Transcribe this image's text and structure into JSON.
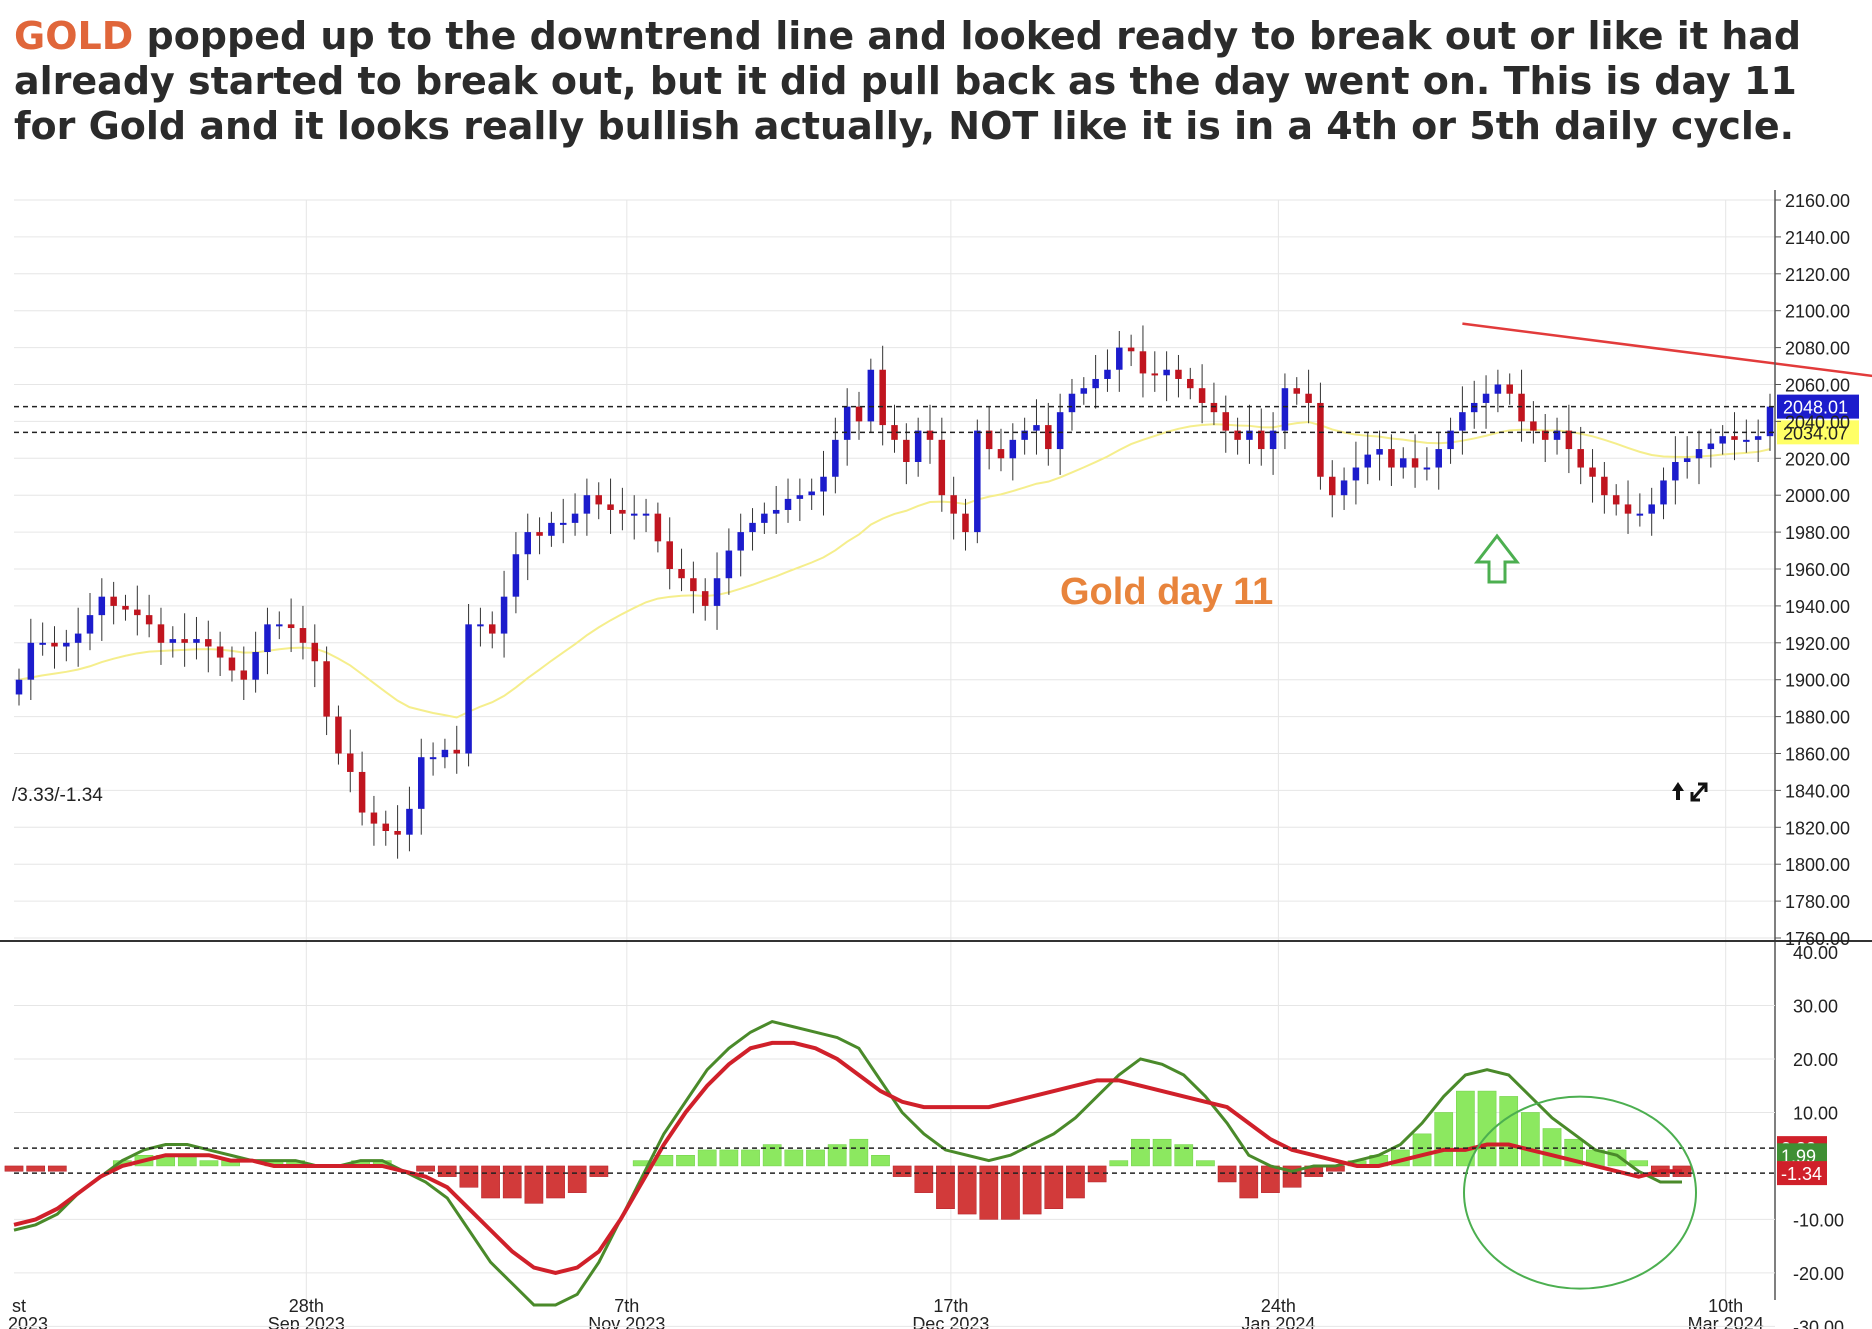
{
  "headline": {
    "ticker": "GOLD",
    "text": " popped up to the downtrend line and looked ready to break out or like it had already started to break out, but it did pull back as the day went on. This is day 11 for Gold and it looks really bullish actually, NOT like it is in a 4th or 5th daily cycle."
  },
  "colors": {
    "up_candle": "#1c1ccc",
    "down_candle": "#c0151f",
    "ma_line": "#f5ee8c",
    "trend_line": "#e23b3b",
    "annotation": "#e8843c",
    "arrow": "#4caf50",
    "macd_fast": "#4a8a2a",
    "macd_signal": "#d0202a",
    "hist_pos": "#8ce860",
    "hist_neg": "#d23a3a"
  },
  "chart_data": [
    {
      "type": "candlestick",
      "x_ticks": [
        "28th\nSep 2023",
        "7th\nNov 2023",
        "17th\nDec 2023",
        "24th\nJan 2024",
        "10th\nMar 2024"
      ],
      "x_edge_label": "st\n2023",
      "y_ticks": [
        "1760.00",
        "1780.00",
        "1800.00",
        "1820.00",
        "1840.00",
        "1860.00",
        "1880.00",
        "1900.00",
        "1920.00",
        "1940.00",
        "1960.00",
        "1980.00",
        "2000.00",
        "2020.00",
        "2040.00",
        "2060.00",
        "2080.00",
        "2100.00",
        "2120.00",
        "2140.00",
        "2160.00"
      ],
      "ylim": [
        1760,
        2160
      ],
      "price_labels": [
        {
          "label": "2048.01",
          "value": 2048.01,
          "color": "#1c1ccc"
        },
        {
          "label": "2034.07",
          "value": 2034.07,
          "color": "#ffff66"
        }
      ],
      "annotation": "Gold day 11",
      "trend_line": {
        "from_index": 122,
        "to_index": 188,
        "values": [
          2093,
          2039
        ]
      },
      "closes": [
        1900,
        1920,
        1920,
        1918,
        1920,
        1925,
        1935,
        1945,
        1940,
        1938,
        1935,
        1930,
        1920,
        1922,
        1920,
        1922,
        1918,
        1912,
        1905,
        1900,
        1915,
        1930,
        1930,
        1928,
        1920,
        1910,
        1880,
        1860,
        1850,
        1828,
        1822,
        1818,
        1816,
        1830,
        1858,
        1858,
        1862,
        1860,
        1930,
        1930,
        1925,
        1945,
        1968,
        1980,
        1978,
        1985,
        1985,
        1990,
        2000,
        1995,
        1992,
        1990,
        1990,
        1990,
        1975,
        1960,
        1955,
        1948,
        1940,
        1955,
        1970,
        1980,
        1985,
        1990,
        1992,
        1998,
        2000,
        2002,
        2010,
        2030,
        2048,
        2040,
        2068,
        2038,
        2030,
        2018,
        2035,
        2030,
        2000,
        1990,
        1980,
        2035,
        2025,
        2020,
        2030,
        2035,
        2038,
        2025,
        2045,
        2055,
        2058,
        2063,
        2068,
        2080,
        2078,
        2066,
        2065,
        2068,
        2063,
        2058,
        2050,
        2045,
        2035,
        2030,
        2035,
        2025,
        2035,
        2058,
        2055,
        2050,
        2010,
        2000,
        2008,
        2015,
        2022,
        2025,
        2015,
        2020,
        2015,
        2015,
        2025,
        2035,
        2045,
        2050,
        2055,
        2060,
        2055,
        2040,
        2035,
        2030,
        2035,
        2025,
        2015,
        2010,
        2000,
        1995,
        1990,
        1990,
        1995,
        2008,
        2018,
        2020,
        2025,
        2028,
        2032,
        2030,
        2030,
        2032,
        2048
      ]
    },
    {
      "type": "macd",
      "label": "/3.33/-1.34",
      "y_ticks": [
        "30.00",
        "20.00",
        "10.00",
        "-10.00",
        "-20.00",
        "-30.00"
      ],
      "top_tick": "40.00",
      "ylim": [
        -26,
        40
      ],
      "value_labels": [
        {
          "label": "3.33",
          "value": 3.33,
          "color": "#d0202a"
        },
        {
          "label": "1.99",
          "value": 1.99,
          "color": "#3f8f33"
        },
        {
          "label": "-1.34",
          "value": -1.34,
          "color": "#d0202a"
        }
      ],
      "macd": [
        -12,
        -11,
        -9,
        -5,
        -2,
        1,
        3,
        4,
        4,
        3,
        2,
        1,
        1,
        1,
        0,
        0,
        1,
        1,
        -1,
        -3,
        -6,
        -12,
        -18,
        -22,
        -26,
        -26,
        -24,
        -18,
        -10,
        -2,
        6,
        12,
        18,
        22,
        25,
        27,
        26,
        25,
        24,
        22,
        16,
        10,
        6,
        3,
        2,
        1,
        2,
        4,
        6,
        9,
        13,
        17,
        20,
        19,
        17,
        13,
        8,
        2,
        0,
        -1,
        0,
        0,
        1,
        2,
        4,
        8,
        13,
        17,
        18,
        17,
        13,
        9,
        6,
        3,
        2,
        -1,
        -3,
        -3
      ],
      "signal": [
        -11,
        -10,
        -8,
        -5,
        -2,
        0,
        1,
        2,
        2,
        2,
        1,
        1,
        0,
        0,
        0,
        0,
        0,
        0,
        -1,
        -2,
        -4,
        -8,
        -12,
        -16,
        -19,
        -20,
        -19,
        -16,
        -10,
        -3,
        4,
        10,
        15,
        19,
        22,
        23,
        23,
        22,
        20,
        17,
        14,
        12,
        11,
        11,
        11,
        11,
        12,
        13,
        14,
        15,
        16,
        16,
        15,
        14,
        13,
        12,
        11,
        8,
        5,
        3,
        2,
        1,
        0,
        0,
        1,
        2,
        3,
        3,
        4,
        4,
        3,
        2,
        1,
        0,
        -1,
        -2,
        -1,
        -1
      ]
    }
  ]
}
